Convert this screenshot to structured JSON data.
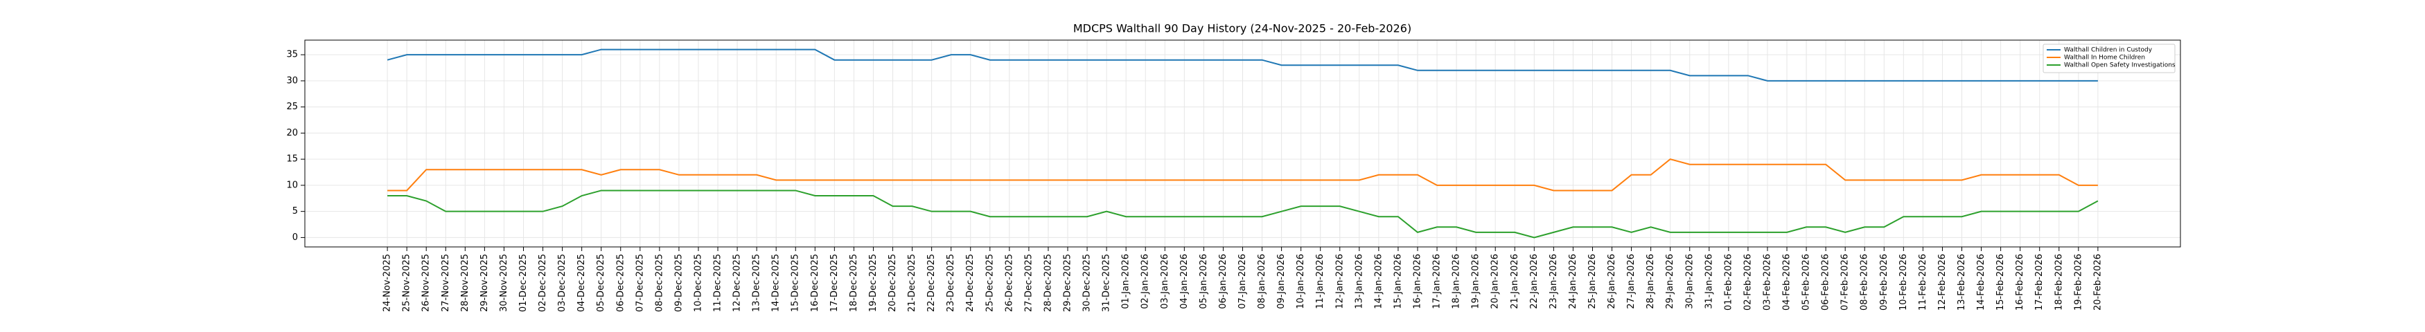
{
  "chart_data": {
    "type": "line",
    "title": "MDCPS Walthall 90 Day History (24-Nov-2025 - 20-Feb-2026)",
    "categories": [
      "24-Nov-2025",
      "25-Nov-2025",
      "26-Nov-2025",
      "27-Nov-2025",
      "28-Nov-2025",
      "29-Nov-2025",
      "30-Nov-2025",
      "01-Dec-2025",
      "02-Dec-2025",
      "03-Dec-2025",
      "04-Dec-2025",
      "05-Dec-2025",
      "06-Dec-2025",
      "07-Dec-2025",
      "08-Dec-2025",
      "09-Dec-2025",
      "10-Dec-2025",
      "11-Dec-2025",
      "12-Dec-2025",
      "13-Dec-2025",
      "14-Dec-2025",
      "15-Dec-2025",
      "16-Dec-2025",
      "17-Dec-2025",
      "18-Dec-2025",
      "19-Dec-2025",
      "20-Dec-2025",
      "21-Dec-2025",
      "22-Dec-2025",
      "23-Dec-2025",
      "24-Dec-2025",
      "25-Dec-2025",
      "26-Dec-2025",
      "27-Dec-2025",
      "28-Dec-2025",
      "29-Dec-2025",
      "30-Dec-2025",
      "31-Dec-2025",
      "01-Jan-2026",
      "02-Jan-2026",
      "03-Jan-2026",
      "04-Jan-2026",
      "05-Jan-2026",
      "06-Jan-2026",
      "07-Jan-2026",
      "08-Jan-2026",
      "09-Jan-2026",
      "10-Jan-2026",
      "11-Jan-2026",
      "12-Jan-2026",
      "13-Jan-2026",
      "14-Jan-2026",
      "15-Jan-2026",
      "16-Jan-2026",
      "17-Jan-2026",
      "18-Jan-2026",
      "19-Jan-2026",
      "20-Jan-2026",
      "21-Jan-2026",
      "22-Jan-2026",
      "23-Jan-2026",
      "24-Jan-2026",
      "25-Jan-2026",
      "26-Jan-2026",
      "27-Jan-2026",
      "28-Jan-2026",
      "29-Jan-2026",
      "30-Jan-2026",
      "31-Jan-2026",
      "01-Feb-2026",
      "02-Feb-2026",
      "03-Feb-2026",
      "04-Feb-2026",
      "05-Feb-2026",
      "06-Feb-2026",
      "07-Feb-2026",
      "08-Feb-2026",
      "09-Feb-2026",
      "10-Feb-2026",
      "11-Feb-2026",
      "12-Feb-2026",
      "13-Feb-2026",
      "14-Feb-2026",
      "15-Feb-2026",
      "16-Feb-2026",
      "17-Feb-2026",
      "18-Feb-2026",
      "19-Feb-2026",
      "20-Feb-2026"
    ],
    "series": [
      {
        "name": "Walthall Children in Custody",
        "color": "#1f77b4",
        "values": [
          34,
          35,
          35,
          35,
          35,
          35,
          35,
          35,
          35,
          35,
          35,
          36,
          36,
          36,
          36,
          36,
          36,
          36,
          36,
          36,
          36,
          36,
          36,
          34,
          34,
          34,
          34,
          34,
          34,
          35,
          35,
          34,
          34,
          34,
          34,
          34,
          34,
          34,
          34,
          34,
          34,
          34,
          34,
          34,
          34,
          34,
          33,
          33,
          33,
          33,
          33,
          33,
          33,
          32,
          32,
          32,
          32,
          32,
          32,
          32,
          32,
          32,
          32,
          32,
          32,
          32,
          32,
          31,
          31,
          31,
          31,
          30,
          30,
          30,
          30,
          30,
          30,
          30,
          30,
          30,
          30,
          30,
          30,
          30,
          30,
          30,
          30,
          30,
          30
        ]
      },
      {
        "name": "Walthall In Home Children",
        "color": "#ff7f0e",
        "values": [
          9,
          9,
          13,
          13,
          13,
          13,
          13,
          13,
          13,
          13,
          13,
          12,
          13,
          13,
          13,
          12,
          12,
          12,
          12,
          12,
          11,
          11,
          11,
          11,
          11,
          11,
          11,
          11,
          11,
          11,
          11,
          11,
          11,
          11,
          11,
          11,
          11,
          11,
          11,
          11,
          11,
          11,
          11,
          11,
          11,
          11,
          11,
          11,
          11,
          11,
          11,
          12,
          12,
          12,
          10,
          10,
          10,
          10,
          10,
          10,
          9,
          9,
          9,
          9,
          12,
          12,
          15,
          14,
          14,
          14,
          14,
          14,
          14,
          14,
          14,
          11,
          11,
          11,
          11,
          11,
          11,
          11,
          12,
          12,
          12,
          12,
          12,
          10,
          10
        ]
      },
      {
        "name": "Walthall Open Safety Investigations",
        "color": "#2ca02c",
        "values": [
          8,
          8,
          7,
          5,
          5,
          5,
          5,
          5,
          5,
          6,
          8,
          9,
          9,
          9,
          9,
          9,
          9,
          9,
          9,
          9,
          9,
          9,
          8,
          8,
          8,
          8,
          6,
          6,
          5,
          5,
          5,
          4,
          4,
          4,
          4,
          4,
          4,
          5,
          4,
          4,
          4,
          4,
          4,
          4,
          4,
          4,
          5,
          6,
          6,
          6,
          5,
          4,
          4,
          1,
          2,
          2,
          1,
          1,
          1,
          0,
          1,
          2,
          2,
          2,
          1,
          2,
          1,
          1,
          1,
          1,
          1,
          1,
          1,
          2,
          2,
          1,
          2,
          2,
          4,
          4,
          4,
          4,
          5,
          5,
          5,
          5,
          5,
          5,
          7
        ]
      }
    ],
    "ylim": [
      -1.8,
      37.8
    ],
    "yticks": [
      0,
      5,
      10,
      15,
      20,
      25,
      30,
      35
    ],
    "grid": true,
    "legend": "upper right"
  }
}
